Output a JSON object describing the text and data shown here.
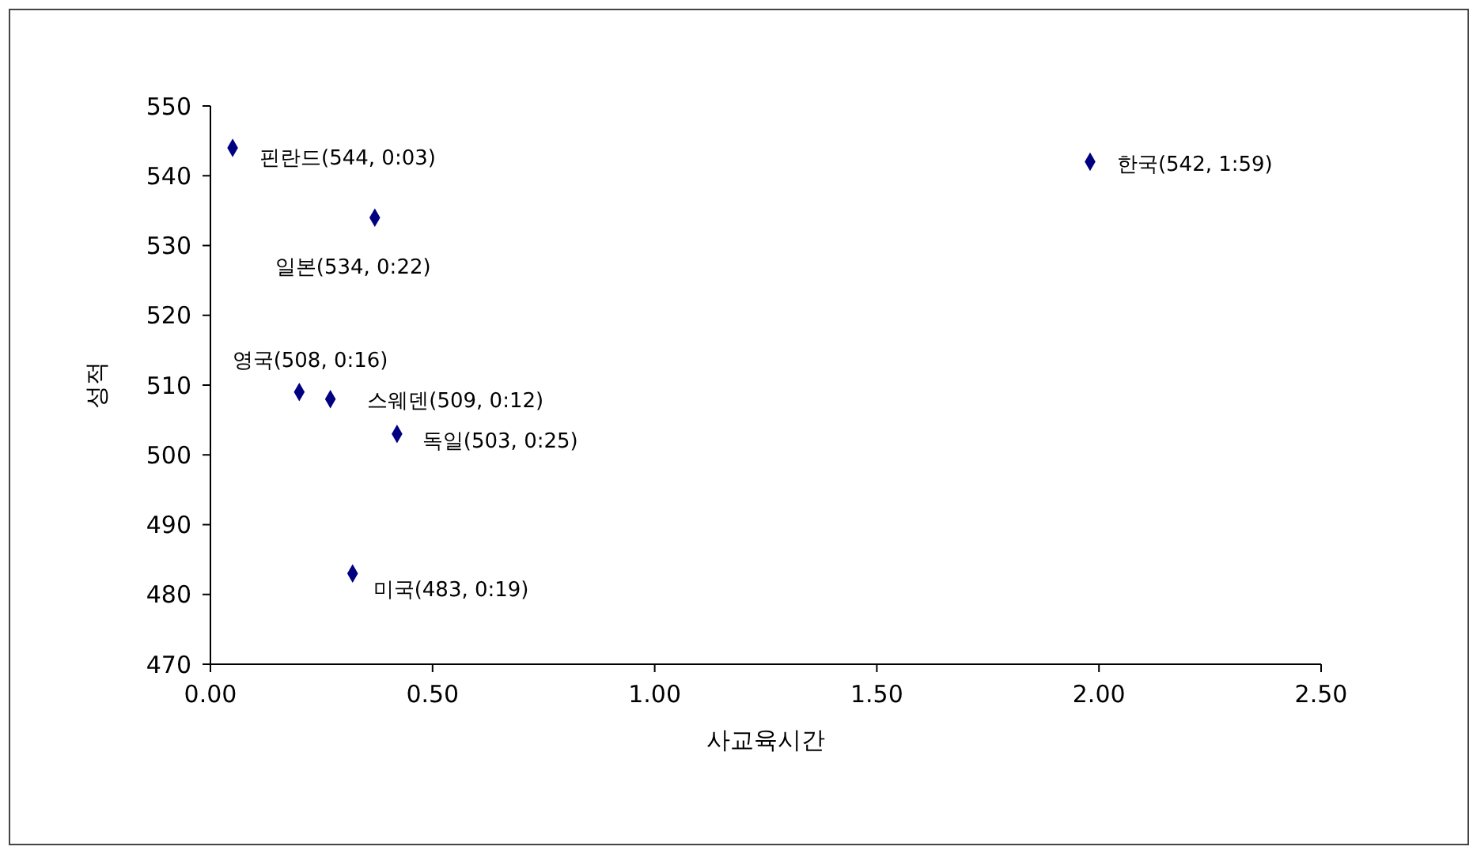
{
  "chart_data": {
    "type": "scatter",
    "xlabel": "사교육시간",
    "ylabel": "성적",
    "x": [
      0.05,
      0.37,
      0.27,
      0.2,
      0.42,
      0.32,
      1.98
    ],
    "series": [
      {
        "color": "#000080",
        "values": [
          544,
          534,
          508,
          509,
          503,
          483,
          542
        ]
      }
    ],
    "marker": "diamond",
    "grid": false,
    "xlim": [
      0,
      2.5
    ],
    "xticks": [
      {
        "value": 0,
        "label": "0.00"
      },
      {
        "value": 0.5,
        "label": "0.50"
      },
      {
        "value": 1,
        "label": "1.00"
      },
      {
        "value": 1.5,
        "label": "1.50"
      },
      {
        "value": 2,
        "label": "2.00"
      },
      {
        "value": 2.5,
        "label": "2.50"
      }
    ],
    "ylim": [
      470,
      550
    ],
    "yticks": [
      470,
      480,
      490,
      500,
      510,
      520,
      530,
      540,
      550
    ],
    "annotations": [
      {
        "text": "핀란드(544, 0:03)",
        "x": 0.05,
        "y": 544
      },
      {
        "text": "일본(534, 0:22)",
        "x": 0.37,
        "y": 534
      },
      {
        "text": "영국(508, 0:16)",
        "x": 0.27,
        "y": 508
      },
      "스웨덴(509, 0:12)",
      {
        "text": "독일(503, 0:25)",
        "x": 0.42,
        "y": 503
      },
      {
        "text": "미국(483, 0:19)",
        "x": 0.32,
        "y": 483
      },
      {
        "text": "한국(542, 1:59)",
        "x": 1.98,
        "y": 542
      }
    ]
  }
}
